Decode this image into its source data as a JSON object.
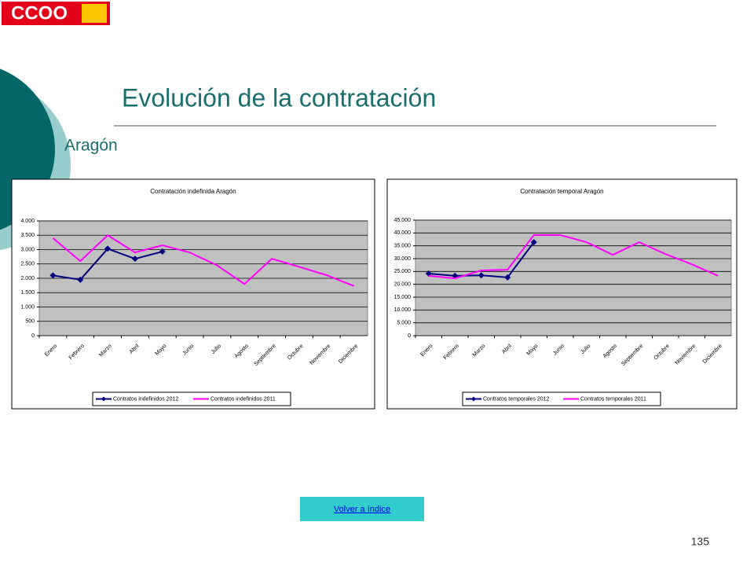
{
  "slide": {
    "logo": "CCOO",
    "title": "Evolución de la contratación",
    "subtitle": "Aragón",
    "link": "Volver a índice",
    "page": "135"
  },
  "chart_data": [
    {
      "type": "line",
      "title": "Contratación indefinida Aragón",
      "categories": [
        "Enero",
        "Febrero",
        "Marzo",
        "Abril",
        "Mayo",
        "Junio",
        "Julio",
        "Agosto",
        "Septiembre",
        "Octubre",
        "Noviembre",
        "Diciembre"
      ],
      "series": [
        {
          "name": "Contratos indefinidos 2012",
          "color": "#000080",
          "marker": "diamond",
          "values": [
            2100,
            1950,
            3030,
            2680,
            2930,
            null,
            null,
            null,
            null,
            null,
            null,
            null
          ]
        },
        {
          "name": "Contratos indefinidos 2011",
          "color": "#ff00ff",
          "values": [
            3400,
            2600,
            3500,
            2900,
            3150,
            2900,
            2450,
            1800,
            2680,
            2400,
            2110,
            1730
          ]
        }
      ],
      "ylim": [
        0,
        4000
      ],
      "yticks": [
        0,
        500,
        {
          "value": 1000,
          "label": "1.000"
        },
        {
          "value": 1500,
          "label": "1.500"
        },
        {
          "value": 2000,
          "label": "2.000"
        },
        {
          "value": 2500,
          "label": "2.500"
        },
        {
          "value": 3000,
          "label": "3.000"
        },
        {
          "value": 3500,
          "label": "3.500"
        },
        {
          "value": 4000,
          "label": "4.000"
        }
      ],
      "grid": true,
      "legend": "bottom"
    },
    {
      "type": "line",
      "title": "Contratación temporal Aragón",
      "categories": [
        "Enero",
        "Febrero",
        "Marzo",
        "Abril",
        "Mayo",
        "Junio",
        "Julio",
        "Agosto",
        "Septiembre",
        "Octubre",
        "Noviembre",
        "Diciembre"
      ],
      "series": [
        {
          "name": "Contratos temporales 2012",
          "color": "#000080",
          "marker": "diamond",
          "values": [
            24200,
            23300,
            23500,
            22700,
            36400,
            null,
            null,
            null,
            null,
            null,
            null,
            null
          ]
        },
        {
          "name": "Contratos temporales 2011",
          "color": "#ff00ff",
          "values": [
            23300,
            22300,
            25400,
            25700,
            39200,
            39200,
            36400,
            31500,
            36400,
            31800,
            27800,
            23300
          ]
        }
      ],
      "ylim": [
        0,
        45000
      ],
      "yticks": [
        0,
        {
          "value": 5000,
          "label": "5.000"
        },
        {
          "value": 10000,
          "label": "10.000"
        },
        {
          "value": 15000,
          "label": "15.000"
        },
        {
          "value": 20000,
          "label": "20.000"
        },
        {
          "value": 25000,
          "label": "25.000"
        },
        {
          "value": 30000,
          "label": "30.000"
        },
        {
          "value": 35000,
          "label": "35.000"
        },
        {
          "value": 40000,
          "label": "40.000"
        },
        {
          "value": 45000,
          "label": "45.000"
        }
      ],
      "grid": true,
      "legend": "bottom"
    }
  ]
}
